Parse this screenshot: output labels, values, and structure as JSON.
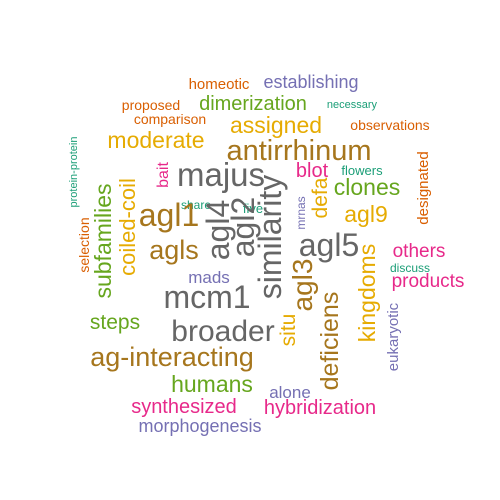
{
  "palette": {
    "teal": "#1b9e77",
    "orange": "#d95f02",
    "purple": "#7570b3",
    "magenta": "#e7298a",
    "green": "#66a61e",
    "gold": "#e6ab02",
    "brown": "#a6761d",
    "gray": "#666666"
  },
  "words": [
    {
      "text": "homeotic",
      "color": "orange"
    },
    {
      "text": "establishing",
      "color": "purple"
    },
    {
      "text": "proposed",
      "color": "orange"
    },
    {
      "text": "dimerization",
      "color": "green"
    },
    {
      "text": "necessary",
      "color": "teal"
    },
    {
      "text": "comparison",
      "color": "orange"
    },
    {
      "text": "assigned",
      "color": "gold"
    },
    {
      "text": "observations",
      "color": "orange"
    },
    {
      "text": "moderate",
      "color": "gold"
    },
    {
      "text": "antirrhinum",
      "color": "brown"
    },
    {
      "text": "protein-protein",
      "color": "teal"
    },
    {
      "text": "designated",
      "color": "orange"
    },
    {
      "text": "bait",
      "color": "magenta"
    },
    {
      "text": "majus",
      "color": "gray"
    },
    {
      "text": "blot",
      "color": "magenta"
    },
    {
      "text": "flowers",
      "color": "teal"
    },
    {
      "text": "clones",
      "color": "green"
    },
    {
      "text": "coiled-coil",
      "color": "gold"
    },
    {
      "text": "subfamilies",
      "color": "green"
    },
    {
      "text": "selection",
      "color": "orange"
    },
    {
      "text": "share",
      "color": "teal"
    },
    {
      "text": "five",
      "color": "teal"
    },
    {
      "text": "mrnas",
      "color": "purple"
    },
    {
      "text": "defa",
      "color": "gold"
    },
    {
      "text": "agl9",
      "color": "gold"
    },
    {
      "text": "agl1",
      "color": "brown"
    },
    {
      "text": "agl4",
      "color": "gray"
    },
    {
      "text": "agl2",
      "color": "gray"
    },
    {
      "text": "similarity",
      "color": "gray"
    },
    {
      "text": "agl5",
      "color": "gray"
    },
    {
      "text": "agls",
      "color": "brown"
    },
    {
      "text": "others",
      "color": "magenta"
    },
    {
      "text": "discuss",
      "color": "teal"
    },
    {
      "text": "products",
      "color": "magenta"
    },
    {
      "text": "mads",
      "color": "purple"
    },
    {
      "text": "agl3",
      "color": "brown"
    },
    {
      "text": "kingdoms",
      "color": "gold"
    },
    {
      "text": "eukaryotic",
      "color": "purple"
    },
    {
      "text": "mcm1",
      "color": "gray"
    },
    {
      "text": "steps",
      "color": "green"
    },
    {
      "text": "situ",
      "color": "gold"
    },
    {
      "text": "broader",
      "color": "gray"
    },
    {
      "text": "deficiens",
      "color": "brown"
    },
    {
      "text": "ag-interacting",
      "color": "brown"
    },
    {
      "text": "humans",
      "color": "green"
    },
    {
      "text": "alone",
      "color": "purple"
    },
    {
      "text": "synthesized",
      "color": "magenta"
    },
    {
      "text": "hybridization",
      "color": "magenta"
    },
    {
      "text": "morphogenesis",
      "color": "purple"
    }
  ]
}
